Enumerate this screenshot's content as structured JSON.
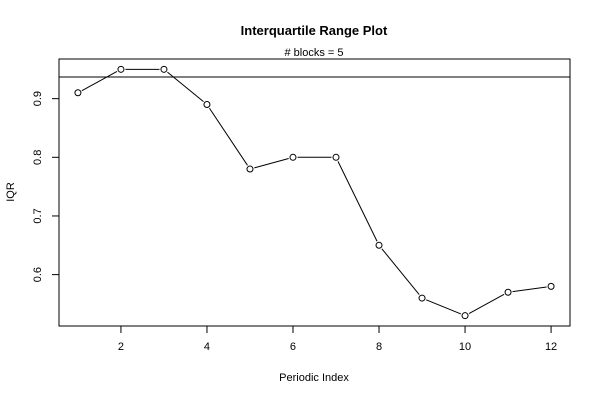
{
  "chart_data": {
    "type": "line",
    "title": "Interquartile Range Plot",
    "subtitle": "# blocks =  5",
    "xlabel": "Periodic Index",
    "ylabel": "IQR",
    "x": [
      1,
      2,
      3,
      4,
      5,
      6,
      7,
      8,
      9,
      10,
      11,
      12
    ],
    "series": [
      {
        "values": [
          0.91,
          0.95,
          0.95,
          0.89,
          0.78,
          0.8,
          0.8,
          0.65,
          0.56,
          0.53,
          0.57,
          0.58
        ]
      }
    ],
    "reference_line": 0.937,
    "xlim": [
      0.56,
      12.44
    ],
    "ylim": [
      0.5124,
      0.9676
    ],
    "xticks": [
      2,
      4,
      6,
      8,
      10,
      12
    ],
    "xtick_labels": [
      "2",
      "4",
      "6",
      "8",
      "10",
      "12"
    ],
    "yticks": [
      0.6,
      0.7,
      0.8,
      0.9
    ],
    "ytick_labels": [
      "0.6",
      "0.7",
      "0.8",
      "0.9"
    ],
    "marker": "open-circle",
    "grid": false,
    "legend": "none",
    "colors": {
      "line": "#000000",
      "marker_fill": "#ffffff",
      "background": "#ffffff"
    }
  }
}
